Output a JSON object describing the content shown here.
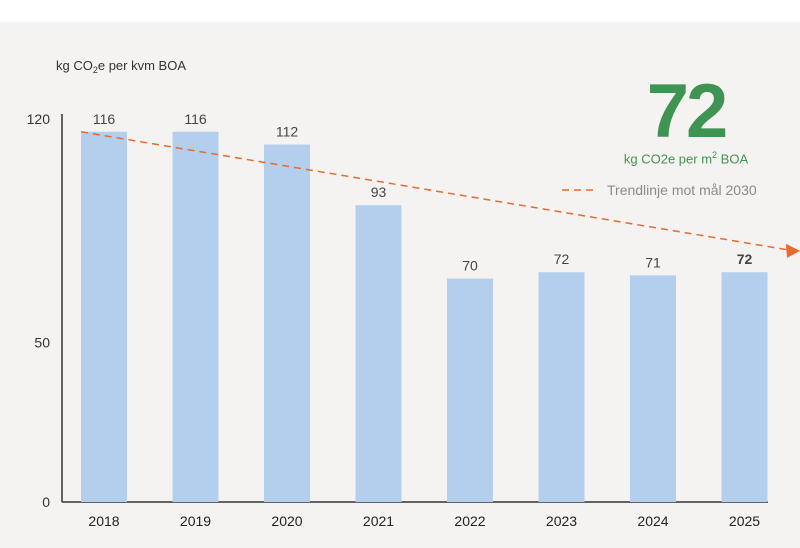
{
  "chart_data": {
    "type": "bar",
    "ylabel_prefix": "kg CO",
    "ylabel_sub": "2",
    "ylabel_suffix": "e per kvm BOA",
    "categories": [
      "2018",
      "2019",
      "2020",
      "2021",
      "2022",
      "2023",
      "2024",
      "2025"
    ],
    "values": [
      116,
      116,
      112,
      93,
      70,
      72,
      71,
      72
    ],
    "value_labels": [
      "116",
      "116",
      "112",
      "93",
      "70",
      "72",
      "71",
      "72"
    ],
    "yticks": [
      "0",
      "50",
      "120"
    ],
    "ytick_values": [
      0,
      50,
      120
    ],
    "ylim": [
      0,
      120
    ],
    "bar_color": "#b3cfed",
    "trendline": {
      "label": "Trendlinje mot mål 2030",
      "start_value": 116,
      "end_value": 79,
      "color": "#e86a2c"
    },
    "highlight_index": 7
  },
  "kpi": {
    "value": "72",
    "unit_prefix": "kg CO2e per m",
    "unit_sup": "2",
    "unit_suffix": " BOA",
    "color": "#3f9353"
  }
}
